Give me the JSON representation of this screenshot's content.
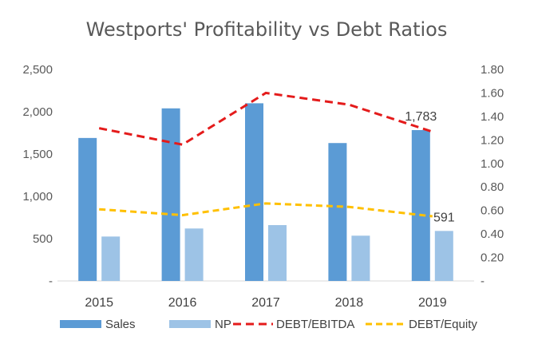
{
  "chart_data": {
    "type": "bar",
    "title": "Westports' Profitability vs Debt Ratios",
    "categories": [
      "2015",
      "2016",
      "2017",
      "2018",
      "2019"
    ],
    "series": [
      {
        "name": "Sales",
        "kind": "bar",
        "axis": "left",
        "color": "#5B9BD5",
        "values": [
          1690,
          2040,
          2100,
          1630,
          1783
        ]
      },
      {
        "name": "NP",
        "kind": "bar",
        "axis": "left",
        "color": "#9DC3E6",
        "values": [
          525,
          620,
          660,
          535,
          591
        ]
      },
      {
        "name": "DEBT/EBITDA",
        "kind": "line",
        "dash": true,
        "axis": "right",
        "color": "#E41B1B",
        "values": [
          1.3,
          1.16,
          1.6,
          1.5,
          1.27
        ]
      },
      {
        "name": "DEBT/Equity",
        "kind": "line",
        "dash": true,
        "axis": "right",
        "color": "#FFC000",
        "values": [
          0.61,
          0.56,
          0.66,
          0.63,
          0.55
        ]
      }
    ],
    "left_axis": {
      "min": 0,
      "max": 2500,
      "step": 500,
      "tick_labels": [
        "-",
        "500",
        "1,000",
        "1,500",
        "2,000",
        "2,500"
      ]
    },
    "right_axis": {
      "min": 0,
      "max": 1.8,
      "step": 0.2,
      "tick_labels": [
        "-",
        "0.20",
        "0.40",
        "0.60",
        "0.80",
        "1.00",
        "1.20",
        "1.40",
        "1.60",
        "1.80"
      ]
    },
    "data_labels": [
      {
        "series": "Sales",
        "category": "2019",
        "text": "1,783"
      },
      {
        "series": "NP",
        "category": "2019",
        "text": "591"
      }
    ],
    "legend": {
      "position": "bottom",
      "entries": [
        "Sales",
        "NP",
        "DEBT/EBITDA",
        "DEBT/Equity"
      ]
    },
    "grid": false
  }
}
